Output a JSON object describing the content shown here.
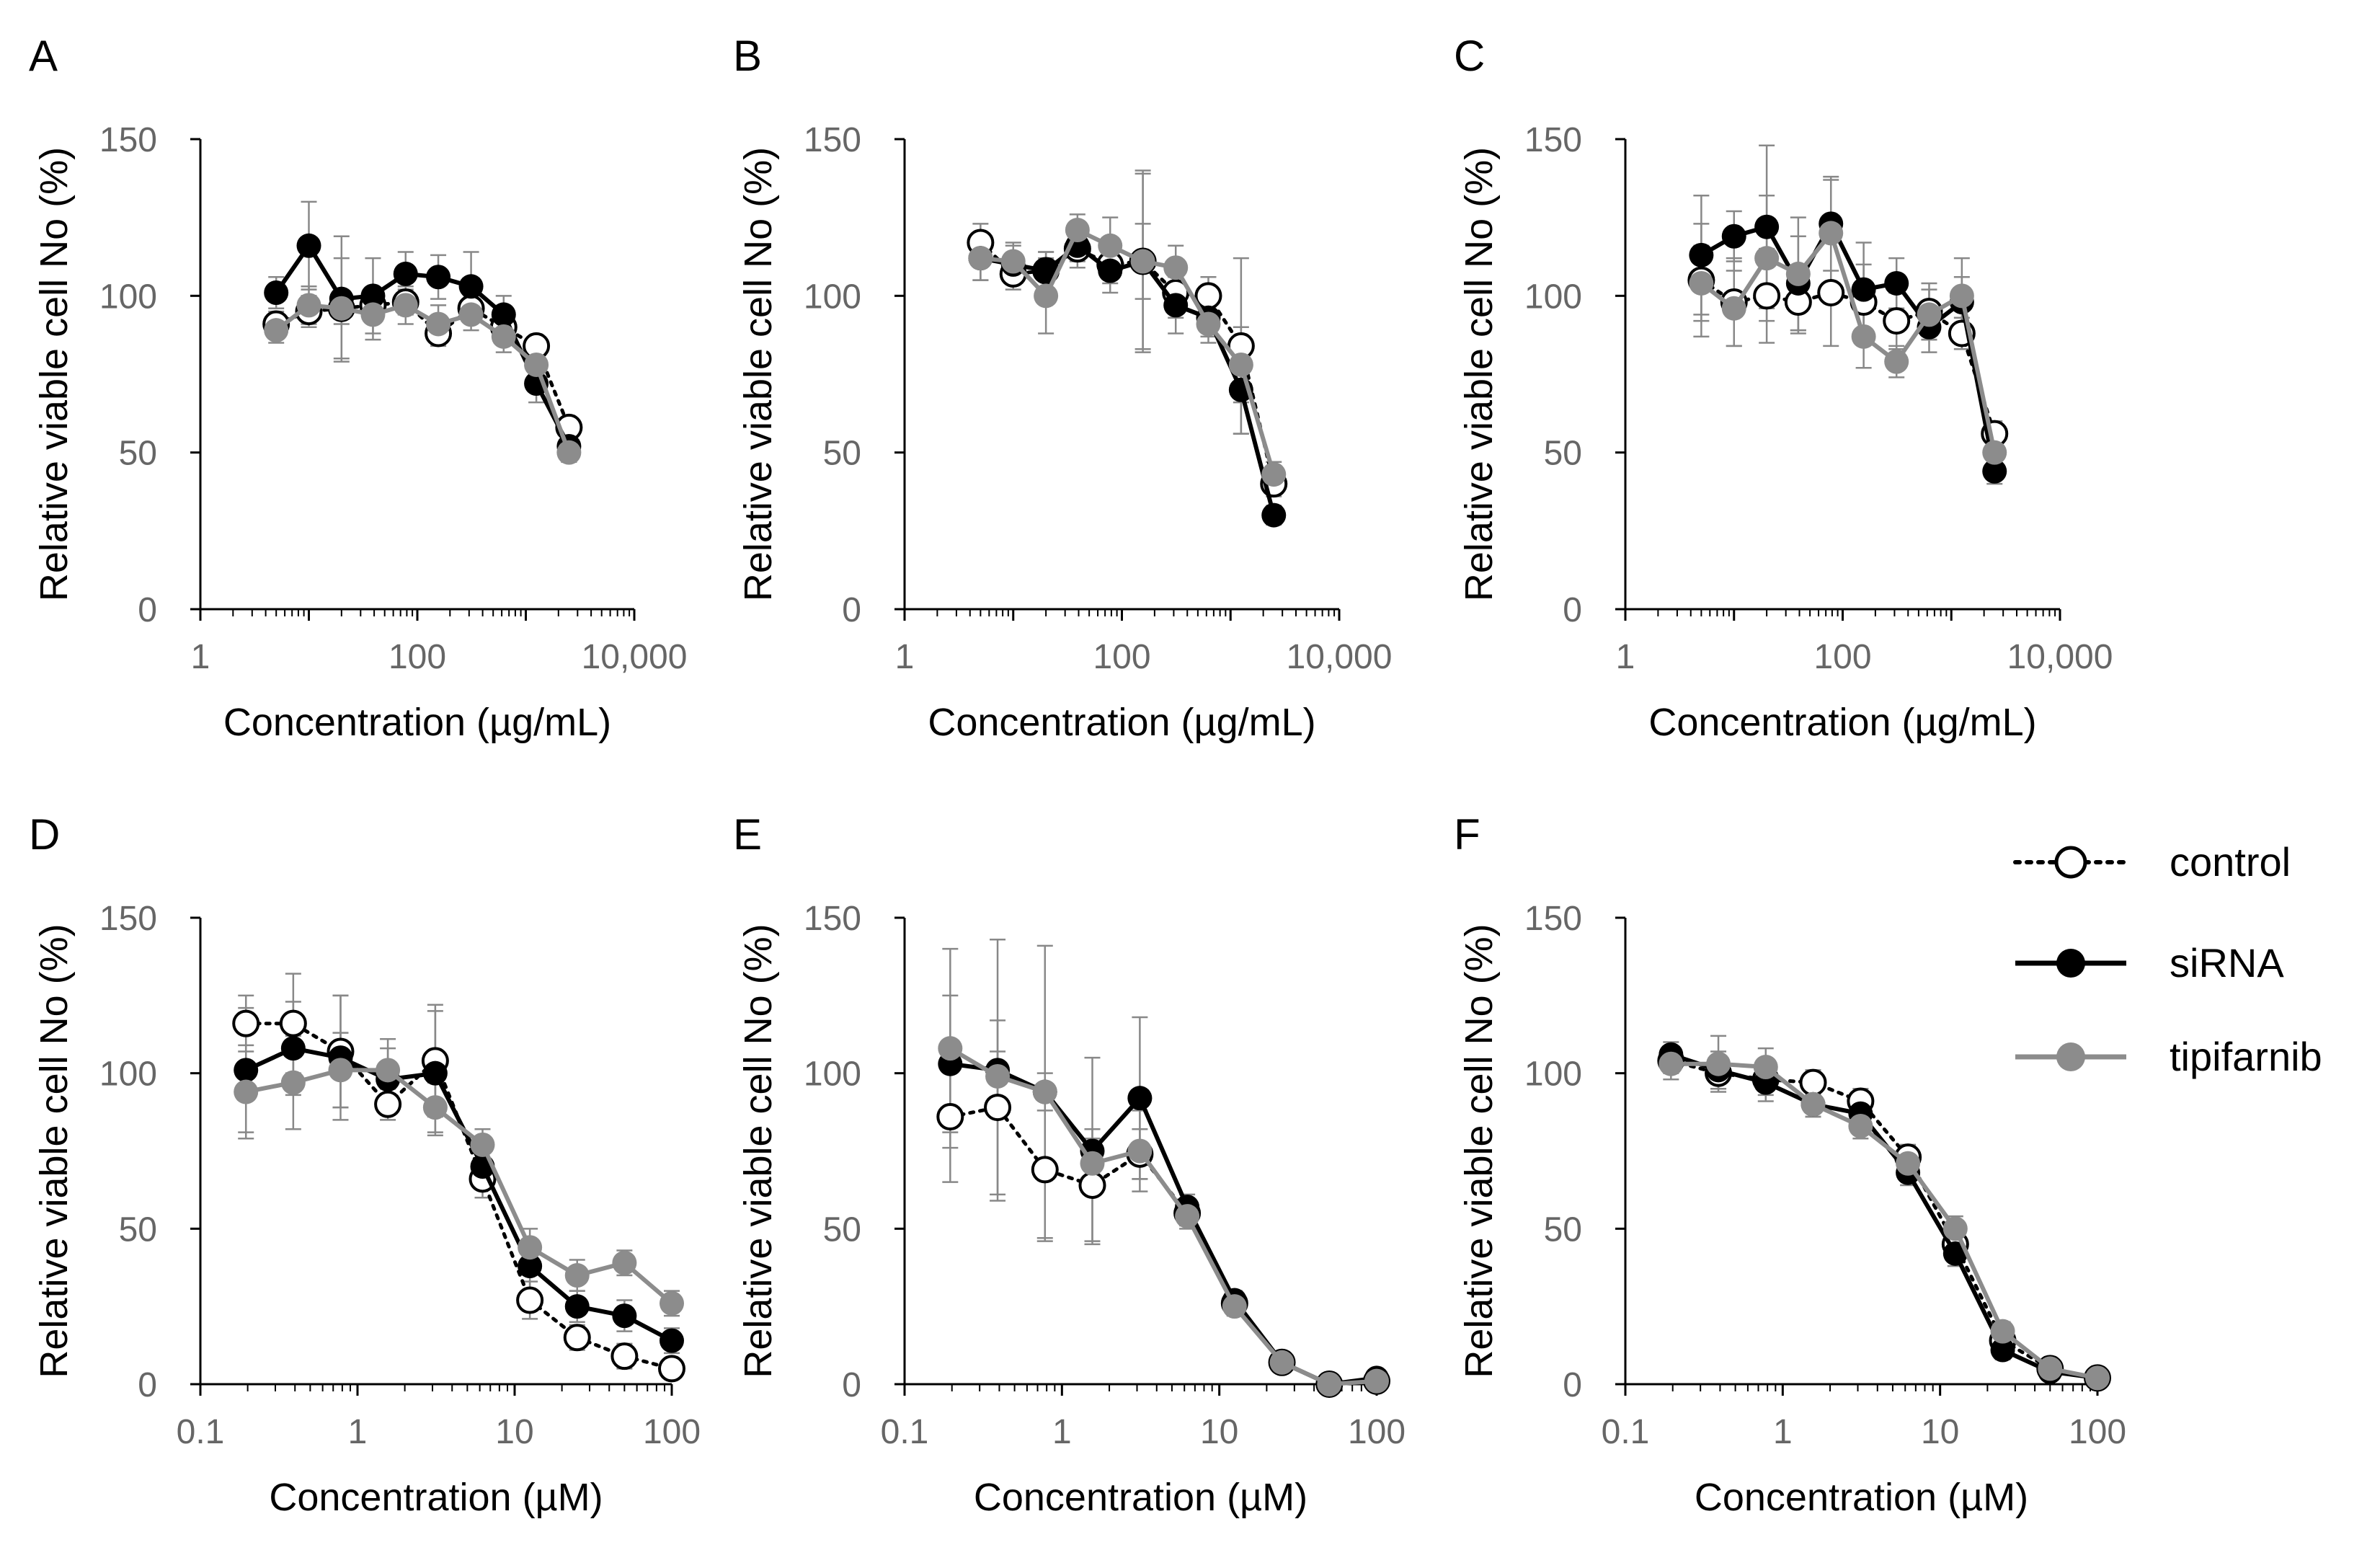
{
  "colors": {
    "control_fill": "#ffffff",
    "control_stroke": "#000000",
    "sirna": "#000000",
    "tipifarnib": "#8c8c8c",
    "axis": "#000000",
    "tick_label": "#666666"
  },
  "legend": {
    "items": [
      {
        "key": "control",
        "label": "control"
      },
      {
        "key": "sirna",
        "label": "siRNA"
      },
      {
        "key": "tipifarnib",
        "label": "tipifarnib"
      }
    ]
  },
  "chart_data": [
    {
      "panel": "A",
      "type": "line",
      "xlabel": "Concentration (µg/mL)",
      "ylabel": "Relative viable cell No (%)",
      "xscale": "log",
      "xlim": [
        1,
        10000
      ],
      "ylim": [
        0,
        150
      ],
      "xticks": [
        1,
        100,
        10000
      ],
      "xtick_labels": [
        "1",
        "100",
        "10,000"
      ],
      "yticks": [
        0,
        50,
        100,
        150
      ],
      "ytick_labels": [
        "0",
        "50",
        "100",
        "150"
      ],
      "x": [
        5,
        10,
        20,
        39,
        78,
        156,
        313,
        625,
        1250,
        2500
      ],
      "series": [
        {
          "name": "control",
          "values": [
            91,
            95,
            96,
            97,
            98,
            88,
            96,
            90,
            84,
            58
          ],
          "err": [
            4,
            5,
            5,
            5,
            4,
            4,
            4,
            3,
            3,
            3
          ]
        },
        {
          "name": "siRNA",
          "values": [
            101,
            116,
            99,
            100,
            107,
            106,
            103,
            94,
            72,
            52
          ],
          "err": [
            5,
            14,
            20,
            12,
            7,
            7,
            11,
            6,
            6,
            4
          ]
        },
        {
          "name": "tipifarnib",
          "values": [
            89,
            97,
            96,
            94,
            97,
            91,
            94,
            87,
            78,
            50
          ],
          "err": [
            4,
            6,
            16,
            8,
            6,
            6,
            5,
            5,
            5,
            3
          ]
        }
      ]
    },
    {
      "panel": "B",
      "type": "line",
      "xlabel": "Concentration (µg/mL)",
      "ylabel": "Relative viable cell No (%)",
      "xscale": "log",
      "xlim": [
        1,
        10000
      ],
      "ylim": [
        0,
        150
      ],
      "xticks": [
        1,
        100,
        10000
      ],
      "xtick_labels": [
        "1",
        "100",
        "10,000"
      ],
      "yticks": [
        0,
        50,
        100,
        150
      ],
      "ytick_labels": [
        "0",
        "50",
        "100",
        "150"
      ],
      "x": [
        5,
        10,
        20,
        39,
        78,
        156,
        313,
        625,
        1250,
        2500
      ],
      "series": [
        {
          "name": "control",
          "values": [
            117,
            107,
            108,
            115,
            110,
            111,
            101,
            100,
            84,
            40
          ],
          "err": [
            6,
            5,
            6,
            6,
            6,
            29,
            8,
            6,
            28,
            4
          ]
        },
        {
          "name": "siRNA",
          "values": [
            112,
            110,
            108,
            116,
            108,
            111,
            97,
            93,
            70,
            30
          ],
          "err": [
            7,
            6,
            6,
            5,
            7,
            28,
            9,
            6,
            14,
            3
          ]
        },
        {
          "name": "tipifarnib",
          "values": [
            112,
            111,
            100,
            121,
            116,
            111,
            109,
            91,
            78,
            43
          ],
          "err": [
            7,
            6,
            12,
            5,
            9,
            12,
            7,
            6,
            12,
            4
          ]
        }
      ]
    },
    {
      "panel": "C",
      "type": "line",
      "xlabel": "Concentration (µg/mL)",
      "ylabel": "Relative viable cell No (%)",
      "xscale": "log",
      "xlim": [
        1,
        10000
      ],
      "ylim": [
        0,
        150
      ],
      "xticks": [
        1,
        100,
        10000
      ],
      "xtick_labels": [
        "1",
        "100",
        "10,000"
      ],
      "yticks": [
        0,
        50,
        100,
        150
      ],
      "ytick_labels": [
        "0",
        "50",
        "100",
        "150"
      ],
      "x": [
        5,
        10,
        20,
        39,
        78,
        156,
        313,
        625,
        1250,
        2500
      ],
      "series": [
        {
          "name": "control",
          "values": [
            105,
            98,
            100,
            98,
            101,
            98,
            92,
            95,
            88,
            56
          ],
          "err": [
            18,
            14,
            15,
            10,
            17,
            12,
            9,
            9,
            5,
            4
          ]
        },
        {
          "name": "siRNA",
          "values": [
            113,
            119,
            122,
            104,
            123,
            102,
            104,
            90,
            98,
            44
          ],
          "err": [
            19,
            8,
            26,
            15,
            15,
            15,
            8,
            8,
            8,
            4
          ]
        },
        {
          "name": "tipifarnib",
          "values": [
            104,
            96,
            112,
            107,
            120,
            87,
            79,
            94,
            100,
            50
          ],
          "err": [
            12,
            12,
            20,
            18,
            17,
            10,
            5,
            8,
            12,
            4
          ]
        }
      ]
    },
    {
      "panel": "D",
      "type": "line",
      "xlabel": "Concentration (µM)",
      "ylabel": "Relative viable cell No (%)",
      "xscale": "log",
      "xlim": [
        0.1,
        100
      ],
      "ylim": [
        0,
        150
      ],
      "xticks": [
        0.1,
        1,
        10,
        100
      ],
      "xtick_labels": [
        "0.1",
        "1",
        "10",
        "100"
      ],
      "yticks": [
        0,
        50,
        100,
        150
      ],
      "ytick_labels": [
        "0",
        "50",
        "100",
        "150"
      ],
      "x": [
        0.195,
        0.39,
        0.78,
        1.56,
        3.125,
        6.25,
        12.5,
        25,
        50,
        100
      ],
      "series": [
        {
          "name": "control",
          "values": [
            116,
            116,
            107,
            90,
            104,
            66,
            27,
            15,
            9,
            5
          ],
          "err": [
            9,
            16,
            18,
            5,
            18,
            6,
            6,
            4,
            4,
            3
          ]
        },
        {
          "name": "siRNA",
          "values": [
            101,
            108,
            105,
            98,
            100,
            70,
            38,
            25,
            22,
            14
          ],
          "err": [
            20,
            15,
            20,
            10,
            20,
            6,
            8,
            5,
            5,
            4
          ]
        },
        {
          "name": "tipifarnib",
          "values": [
            94,
            97,
            101,
            101,
            89,
            77,
            44,
            35,
            39,
            26
          ],
          "err": [
            15,
            15,
            12,
            10,
            8,
            5,
            6,
            5,
            4,
            4
          ]
        }
      ]
    },
    {
      "panel": "E",
      "type": "line",
      "xlabel": "Concentration (µM)",
      "ylabel": "Relative viable cell No (%)",
      "xscale": "log",
      "xlim": [
        0.1,
        100
      ],
      "ylim": [
        0,
        150
      ],
      "xticks": [
        0.1,
        1,
        10,
        100
      ],
      "xtick_labels": [
        "0.1",
        "1",
        "10",
        "100"
      ],
      "yticks": [
        0,
        50,
        100,
        150
      ],
      "ytick_labels": [
        "0",
        "50",
        "100",
        "150"
      ],
      "x": [
        0.195,
        0.39,
        0.78,
        1.56,
        3.125,
        6.25,
        12.5,
        25,
        50,
        100
      ],
      "series": [
        {
          "name": "control",
          "values": [
            86,
            89,
            69,
            64,
            74,
            55,
            26,
            7,
            0,
            1
          ],
          "err": [
            21,
            28,
            23,
            18,
            8,
            4,
            3,
            2,
            1,
            1
          ]
        },
        {
          "name": "siRNA",
          "values": [
            103,
            101,
            94,
            75,
            92,
            57,
            27,
            7,
            0,
            2
          ],
          "err": [
            22,
            42,
            47,
            30,
            26,
            4,
            3,
            2,
            1,
            1
          ]
        },
        {
          "name": "tipifarnib",
          "values": [
            108,
            99,
            94,
            71,
            75,
            54,
            25,
            7,
            0,
            1
          ],
          "err": [
            32,
            8,
            6,
            8,
            13,
            4,
            3,
            2,
            1,
            1
          ]
        }
      ]
    },
    {
      "panel": "F",
      "type": "line",
      "xlabel": "Concentration (µM)",
      "ylabel": "Relative viable cell No (%)",
      "xscale": "log",
      "xlim": [
        0.1,
        100
      ],
      "ylim": [
        0,
        150
      ],
      "xticks": [
        0.1,
        1,
        10,
        100
      ],
      "xtick_labels": [
        "0.1",
        "1",
        "10",
        "100"
      ],
      "yticks": [
        0,
        50,
        100,
        150
      ],
      "ytick_labels": [
        "0",
        "50",
        "100",
        "150"
      ],
      "x": [
        0.195,
        0.39,
        0.78,
        1.56,
        3.125,
        6.25,
        12.5,
        25,
        50,
        100
      ],
      "series": [
        {
          "name": "control",
          "values": [
            104,
            100,
            98,
            97,
            91,
            73,
            45,
            14,
            5,
            2
          ],
          "err": [
            4,
            5,
            5,
            4,
            4,
            4,
            4,
            3,
            2,
            1
          ]
        },
        {
          "name": "siRNA",
          "values": [
            106,
            101,
            97,
            90,
            87,
            68,
            42,
            11,
            4,
            2
          ],
          "err": [
            4,
            6,
            6,
            4,
            5,
            4,
            4,
            3,
            2,
            1
          ]
        },
        {
          "name": "tipifarnib",
          "values": [
            103,
            103,
            102,
            90,
            83,
            71,
            50,
            17,
            5,
            2
          ],
          "err": [
            5,
            9,
            6,
            4,
            4,
            4,
            4,
            3,
            2,
            1
          ]
        }
      ]
    }
  ]
}
